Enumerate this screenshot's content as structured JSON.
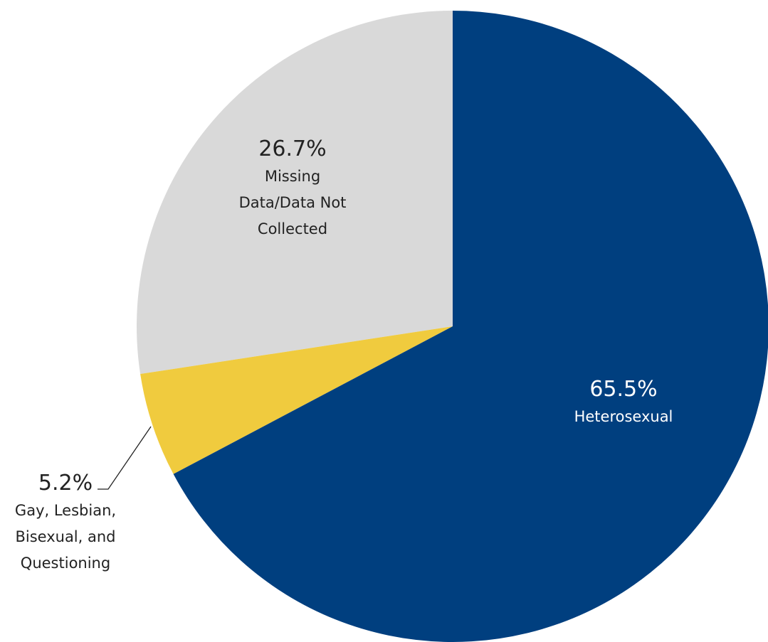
{
  "chart_data": {
    "type": "pie",
    "categories": [
      "Heterosexual",
      "Gay, Lesbian, Bisexual, and Questioning",
      "Missing Data/Data Not Collected"
    ],
    "values": [
      65.5,
      5.2,
      26.7
    ],
    "value_labels": [
      "65.5%",
      "5.2%",
      "26.7%"
    ],
    "colors": [
      "#003f7f",
      "#f0cb3e",
      "#d9d9d9"
    ]
  }
}
